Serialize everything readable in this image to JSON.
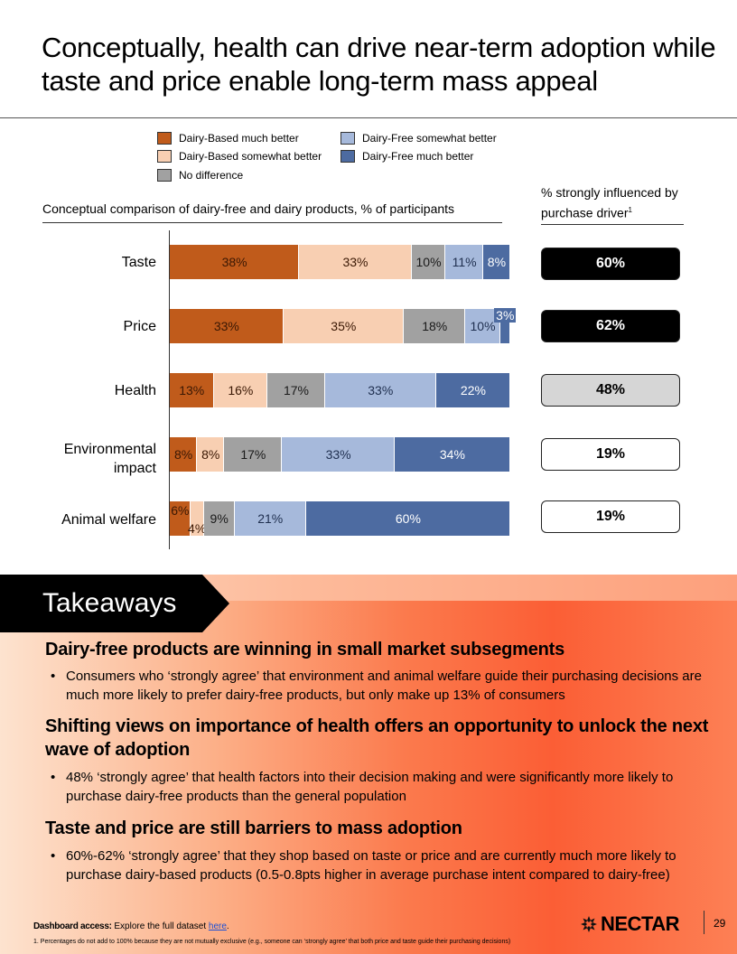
{
  "title": "Conceptually, health can drive near-term adoption while taste and price enable long-term mass appeal",
  "legend": [
    {
      "label": "Dairy-Based much better",
      "color": "#c05b1b"
    },
    {
      "label": "Dairy-Based somewhat better",
      "color": "#f8cfb2"
    },
    {
      "label": "No difference",
      "color": "#a1a1a1"
    },
    {
      "label": "Dairy-Free somewhat better",
      "color": "#a6b9db"
    },
    {
      "label": "Dairy-Free much better",
      "color": "#4d6ba1"
    }
  ],
  "subtitle_bold": "Conceptual comparison of dairy-free and dairy products,",
  "subtitle_rest": "% of participants",
  "right_header": "% strongly influenced by purchase driver",
  "right_header_sup": "1",
  "chart_data": {
    "type": "bar",
    "orientation": "horizontal-stacked",
    "categories": [
      "Taste",
      "Price",
      "Health",
      "Environmental impact",
      "Animal welfare"
    ],
    "series": [
      {
        "name": "Dairy-Based much better",
        "values": [
          38,
          33,
          13,
          8,
          6
        ]
      },
      {
        "name": "Dairy-Based somewhat better",
        "values": [
          33,
          35,
          16,
          8,
          4
        ]
      },
      {
        "name": "No difference",
        "values": [
          10,
          18,
          17,
          17,
          9
        ]
      },
      {
        "name": "Dairy-Free somewhat better",
        "values": [
          11,
          10,
          33,
          33,
          21
        ]
      },
      {
        "name": "Dairy-Free much better",
        "values": [
          8,
          3,
          22,
          34,
          60
        ]
      }
    ],
    "unit": "%",
    "strongly_influenced": [
      "60%",
      "62%",
      "48%",
      "19%",
      "19%"
    ]
  },
  "takeaways_label": "Takeaways",
  "takeaways": [
    {
      "heading": "Dairy-free products are winning in small market subsegments",
      "bullet": "Consumers who ‘strongly agree’ that environment and animal welfare guide their purchasing decisions are much more likely to prefer dairy-free products, but only make up 13% of consumers"
    },
    {
      "heading": "Shifting views on importance of health offers an opportunity to unlock the next wave of adoption",
      "bullet": "48% ‘strongly agree’ that health factors into their decision making and were significantly more likely to purchase dairy-free products than the general population"
    },
    {
      "heading": "Taste and price are still barriers to mass adoption",
      "bullet": "60%-62% ‘strongly agree’ that they shop based on taste or price and are currently much more likely to purchase dairy-based products (0.5-0.8pts higher in average purchase intent compared to dairy-free)"
    }
  ],
  "bullet_glyph": "•",
  "dashboard_bold": "Dashboard access:",
  "dashboard_text": "Explore the full dataset",
  "dashboard_link": "here",
  "dashboard_end": ".",
  "footnote": "1.   Percentages do not add to 100% because they are not mutually exclusive (e.g., someone can ‘strongly agree’ that both price and taste guide their purchasing decisions)",
  "logo_text": "NECTAR",
  "page_number": "29"
}
